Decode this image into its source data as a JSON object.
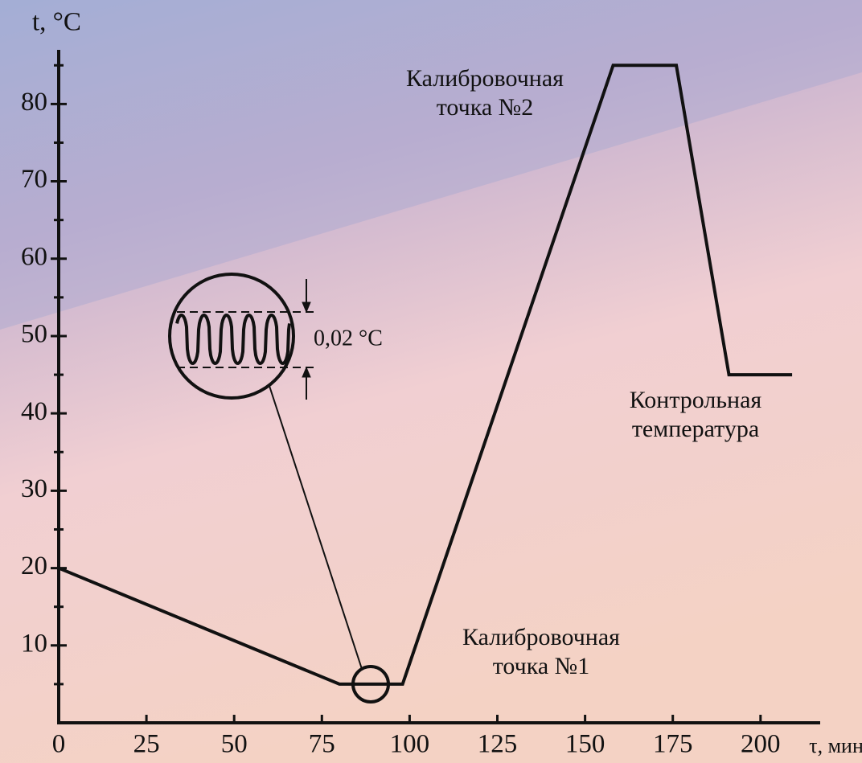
{
  "chart_data": {
    "type": "line",
    "y_label": "t, °C",
    "x_label": "τ, мин",
    "x": [
      0,
      80,
      98,
      158,
      176,
      191,
      209
    ],
    "series": [
      {
        "color": "#111111",
        "values": [
          20,
          5,
          5,
          85,
          85,
          45,
          45
        ]
      }
    ],
    "xlim": [
      0,
      217
    ],
    "ylim": [
      0,
      87
    ],
    "xticks": [
      0,
      25,
      50,
      75,
      100,
      125,
      150,
      175,
      200
    ],
    "yticks": [
      10,
      20,
      30,
      40,
      50,
      60,
      70,
      80
    ],
    "y_minor_ticks": [
      5,
      15,
      25,
      35,
      45,
      55,
      65,
      75,
      85
    ],
    "annotations": [
      [
        "Калибровочная",
        "точка №2"
      ],
      [
        "Калибровочная",
        "точка №1"
      ],
      [
        "Контрольная",
        "температура"
      ]
    ],
    "inset_label": "0,02 °C"
  }
}
